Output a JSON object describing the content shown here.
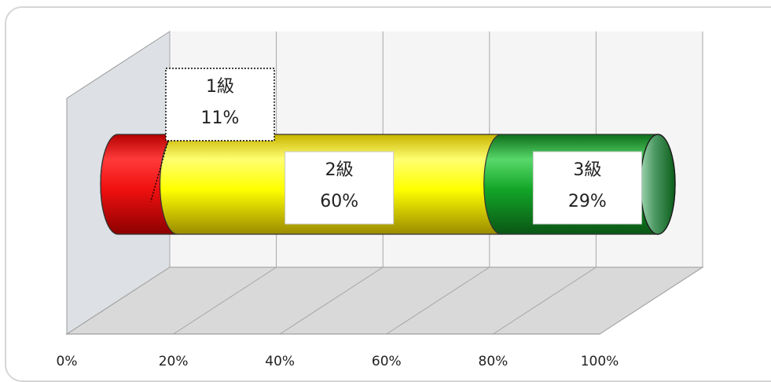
{
  "chart_data": {
    "type": "bar",
    "orientation": "horizontal",
    "stacked": "100%",
    "style": "3d-cylinder",
    "title": "",
    "xlabel": "",
    "ylabel": "",
    "xlim": [
      0,
      100
    ],
    "x_tick_labels": [
      "0%",
      "20%",
      "40%",
      "60%",
      "80%",
      "100%"
    ],
    "grid": true,
    "legend": "none",
    "categories": [
      ""
    ],
    "series": [
      {
        "name": "1級",
        "values": [
          11
        ],
        "color": "#e81010",
        "data_label": [
          "1級",
          "11%"
        ]
      },
      {
        "name": "2級",
        "values": [
          60
        ],
        "color": "#ffff00",
        "data_label": [
          "2級",
          "60%"
        ]
      },
      {
        "name": "3級",
        "values": [
          29
        ],
        "color": "#0b9a1c",
        "data_label": [
          "3級",
          "29%"
        ]
      }
    ]
  }
}
